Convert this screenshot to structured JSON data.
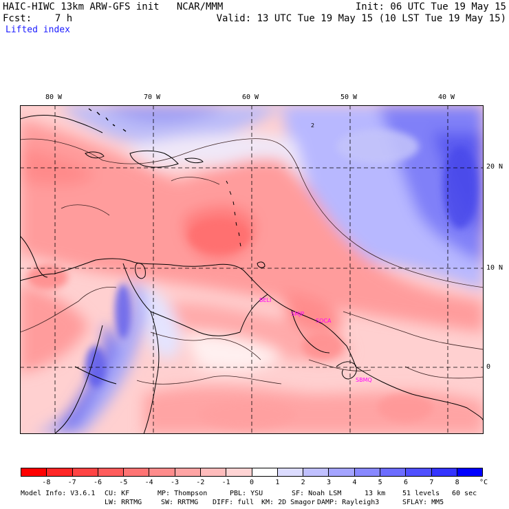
{
  "header": {
    "left_line1": "HAIC-HIWC 13km ARW-GFS init   NCAR/MMM",
    "left_line2": "Fcst:    7 h",
    "right_line1": "Init: 06 UTC Tue 19 May 15",
    "right_line2": "Valid: 13 UTC Tue 19 May 15 (10 LST Tue 19 May 15)",
    "field_name": "Lifted index"
  },
  "map": {
    "lon_labels": [
      "80 W",
      "70 W",
      "60 W",
      "50 W",
      "40 W"
    ],
    "lat_labels": [
      "20 N",
      "10 N",
      "0"
    ],
    "contour_label": "2",
    "stations": [
      "BELI",
      "SMJP",
      "SOCA",
      "SBMQ"
    ]
  },
  "colorbar": {
    "ticks": [
      "-8",
      "-7",
      "-6",
      "-5",
      "-4",
      "-3",
      "-2",
      "-1",
      "0",
      "1",
      "2",
      "3",
      "4",
      "5",
      "6",
      "7",
      "8"
    ],
    "unit": "°C",
    "colors": [
      "#ff0000",
      "#ff2626",
      "#ff4444",
      "#ff5c5c",
      "#ff7474",
      "#ff8c8c",
      "#ffa4a4",
      "#ffbcbc",
      "#ffd4d4",
      "#ffffff",
      "#dcdcff",
      "#c0c0ff",
      "#a4a4ff",
      "#8888ff",
      "#6c6cff",
      "#5050ff",
      "#3434ff",
      "#0000ff"
    ]
  },
  "footer": {
    "model_info": "Model Info: V3.6.1",
    "cu": "CU: KF",
    "mp": "MP: Thompson",
    "pbl": "PBL: YSU",
    "sf": "SF: Noah LSM",
    "res": "13 km",
    "levels": "51 levels",
    "dt": "60 sec",
    "lw": "LW: RRTMG",
    "sw": "SW: RRTMG",
    "diff": "DIFF: full",
    "km": "KM: 2D Smagor",
    "damp": "DAMP: Rayleigh3",
    "sflay": "SFLAY: MM5"
  }
}
